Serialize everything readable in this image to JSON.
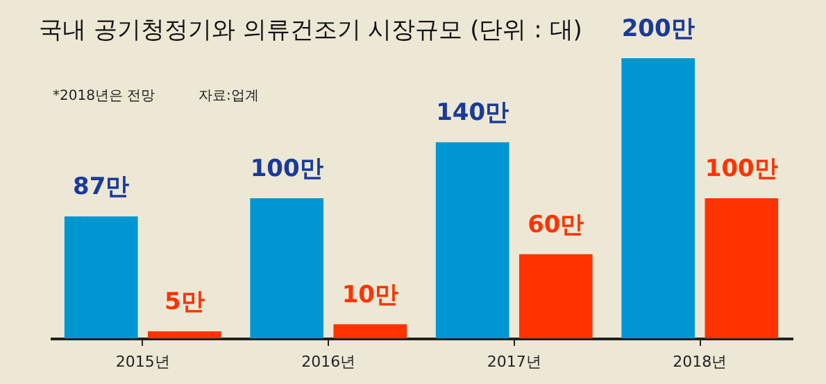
{
  "chart_data": {
    "type": "bar",
    "title": "국내 공기청정기와 의류건조기 시장규모 (단위 : 대)",
    "annotations": [
      "*2018년은 전망",
      "자료:업계"
    ],
    "categories": [
      "2015년",
      "2016년",
      "2017년",
      "2018년"
    ],
    "series": [
      {
        "color": "#0096d2",
        "values": [
          87,
          100,
          140,
          200
        ],
        "value_labels": [
          "87만",
          "100만",
          "140만",
          "200만"
        ]
      },
      {
        "color": "#ff3300",
        "values": [
          5,
          10,
          60,
          100
        ],
        "value_labels": [
          "5만",
          "10만",
          "60만",
          "100만"
        ]
      }
    ],
    "grid": false,
    "legend": false
  }
}
